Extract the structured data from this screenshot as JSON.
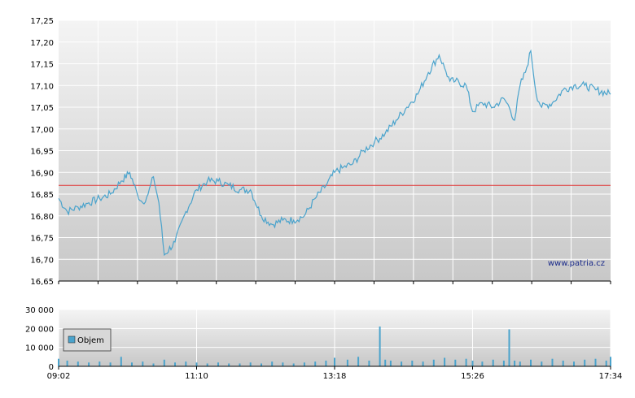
{
  "watermark": "www.patria.cz",
  "legend_label": "Objem",
  "colors": {
    "price_line": "#4aa3cc",
    "reference_line": "#e03030",
    "volume_bar": "#4aa3cc",
    "legend_swatch": "#4aa3cc",
    "gridline": "#ffffff",
    "plot_bg_top": "#f4f4f4",
    "plot_bg_bottom": "#c8c8c8"
  },
  "chart_data": [
    {
      "type": "line",
      "name": "price",
      "ylim": [
        16.65,
        17.25
      ],
      "xlim": [
        "09:02",
        "17:34"
      ],
      "y_ticks": [
        "16,65",
        "16,70",
        "16,75",
        "16,80",
        "16,85",
        "16,90",
        "16,95",
        "17,00",
        "17,05",
        "17,10",
        "17,15",
        "17,20",
        "17,25"
      ],
      "reference_value": 16.87,
      "grid": true,
      "x": [
        "09:02",
        "09:10",
        "09:20",
        "09:30",
        "09:40",
        "09:50",
        "10:00",
        "10:08",
        "10:15",
        "10:20",
        "10:25",
        "10:30",
        "10:35",
        "10:40",
        "10:50",
        "11:00",
        "11:10",
        "11:20",
        "11:30",
        "11:40",
        "11:50",
        "12:00",
        "12:10",
        "12:20",
        "12:30",
        "12:40",
        "12:50",
        "13:00",
        "13:10",
        "13:18",
        "13:25",
        "13:35",
        "13:45",
        "13:55",
        "14:05",
        "14:15",
        "14:25",
        "14:35",
        "14:45",
        "14:55",
        "15:00",
        "15:05",
        "15:10",
        "15:20",
        "15:26",
        "15:35",
        "15:45",
        "15:55",
        "16:00",
        "16:05",
        "16:10",
        "16:15",
        "16:20",
        "16:25",
        "16:30",
        "16:40",
        "16:50",
        "17:00",
        "17:10",
        "17:20",
        "17:34"
      ],
      "y": [
        16.84,
        16.81,
        16.82,
        16.83,
        16.84,
        16.85,
        16.88,
        16.9,
        16.85,
        16.83,
        16.85,
        16.89,
        16.83,
        16.71,
        16.74,
        16.81,
        16.86,
        16.88,
        16.88,
        16.87,
        16.86,
        16.86,
        16.8,
        16.78,
        16.79,
        16.79,
        16.8,
        16.84,
        16.87,
        16.9,
        16.91,
        16.92,
        16.95,
        16.97,
        16.99,
        17.02,
        17.05,
        17.08,
        17.13,
        17.17,
        17.14,
        17.11,
        17.11,
        17.1,
        17.04,
        17.06,
        17.05,
        17.07,
        17.05,
        17.02,
        17.1,
        17.13,
        17.18,
        17.08,
        17.05,
        17.06,
        17.09,
        17.1,
        17.1,
        17.09,
        17.08
      ]
    },
    {
      "type": "bar",
      "name": "volume",
      "ylim": [
        0,
        30000
      ],
      "y_ticks": [
        "0",
        "10 000",
        "20 000",
        "30 000"
      ],
      "x_ticks": [
        "09:02",
        "11:10",
        "13:18",
        "15:26",
        "17:34"
      ],
      "grid": true,
      "legend": "inside, left",
      "x": [
        "09:02",
        "09:10",
        "09:20",
        "09:30",
        "09:40",
        "09:50",
        "10:00",
        "10:10",
        "10:20",
        "10:30",
        "10:40",
        "10:50",
        "11:00",
        "11:10",
        "11:20",
        "11:30",
        "11:40",
        "11:50",
        "12:00",
        "12:10",
        "12:20",
        "12:30",
        "12:40",
        "12:50",
        "13:00",
        "13:10",
        "13:18",
        "13:30",
        "13:40",
        "13:50",
        "14:00",
        "14:05",
        "14:10",
        "14:20",
        "14:30",
        "14:40",
        "14:50",
        "15:00",
        "15:10",
        "15:20",
        "15:26",
        "15:35",
        "15:45",
        "15:55",
        "16:00",
        "16:05",
        "16:10",
        "16:20",
        "16:30",
        "16:40",
        "16:50",
        "17:00",
        "17:10",
        "17:20",
        "17:30",
        "17:34"
      ],
      "values": [
        4000,
        3000,
        2500,
        2000,
        2500,
        2000,
        5000,
        2000,
        2500,
        1500,
        3500,
        2000,
        2500,
        2000,
        1500,
        2000,
        1500,
        1500,
        2000,
        1500,
        2500,
        2000,
        1500,
        2000,
        2500,
        3000,
        4500,
        3500,
        5000,
        3000,
        21000,
        3500,
        3000,
        2500,
        3000,
        2500,
        3500,
        4500,
        3500,
        4000,
        3000,
        2500,
        3500,
        3000,
        19500,
        3000,
        2500,
        3500,
        2500,
        4000,
        3000,
        2500,
        3500,
        4000,
        3000,
        5000
      ]
    }
  ]
}
